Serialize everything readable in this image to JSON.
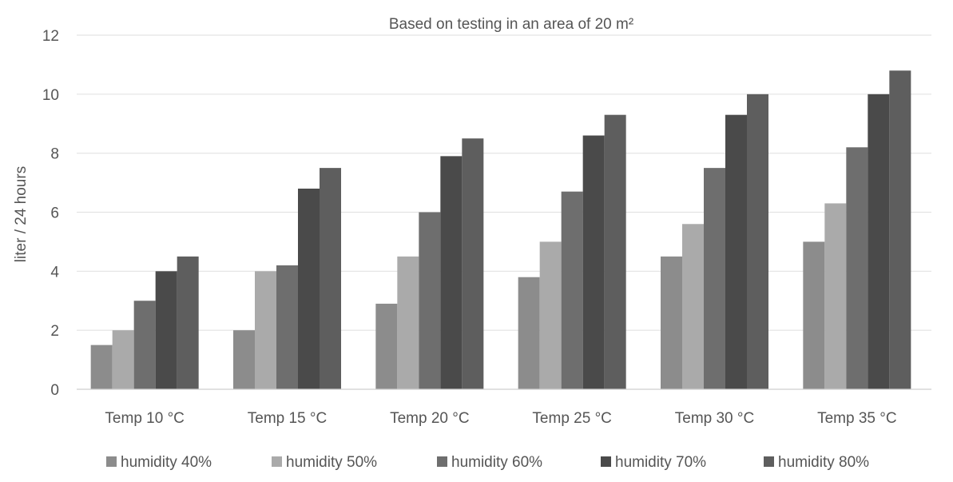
{
  "chart_data": {
    "type": "bar",
    "title": "",
    "subtitle": "Based on testing in an area of 20 m²",
    "xlabel": "",
    "ylabel": "liter / 24 hours",
    "ylim": [
      0,
      12
    ],
    "yticks": [
      "0",
      "2",
      "4",
      "6",
      "8",
      "10",
      "12"
    ],
    "grid": true,
    "legend_position": "bottom",
    "categories": [
      "Temp 10 °C",
      "Temp 15 °C",
      "Temp 20 °C",
      "Temp 25 °C",
      "Temp 30 °C",
      "Temp 35 °C"
    ],
    "series": [
      {
        "name": "humidity 40%",
        "color": "#8c8c8c",
        "values": [
          1.5,
          2.0,
          2.9,
          3.8,
          4.5,
          5.0
        ]
      },
      {
        "name": "humidity 50%",
        "color": "#aaaaaa",
        "values": [
          2.0,
          4.0,
          4.5,
          5.0,
          5.6,
          6.3
        ]
      },
      {
        "name": "humidity 60%",
        "color": "#6e6e6e",
        "values": [
          3.0,
          4.2,
          6.0,
          6.7,
          7.5,
          8.2
        ]
      },
      {
        "name": "humidity 70%",
        "color": "#4a4a4a",
        "values": [
          4.0,
          6.8,
          7.9,
          8.6,
          9.3,
          10.0
        ]
      },
      {
        "name": "humidity 80%",
        "color": "#5e5e5e",
        "values": [
          4.5,
          7.5,
          8.5,
          9.3,
          10.0,
          10.8
        ]
      }
    ]
  }
}
